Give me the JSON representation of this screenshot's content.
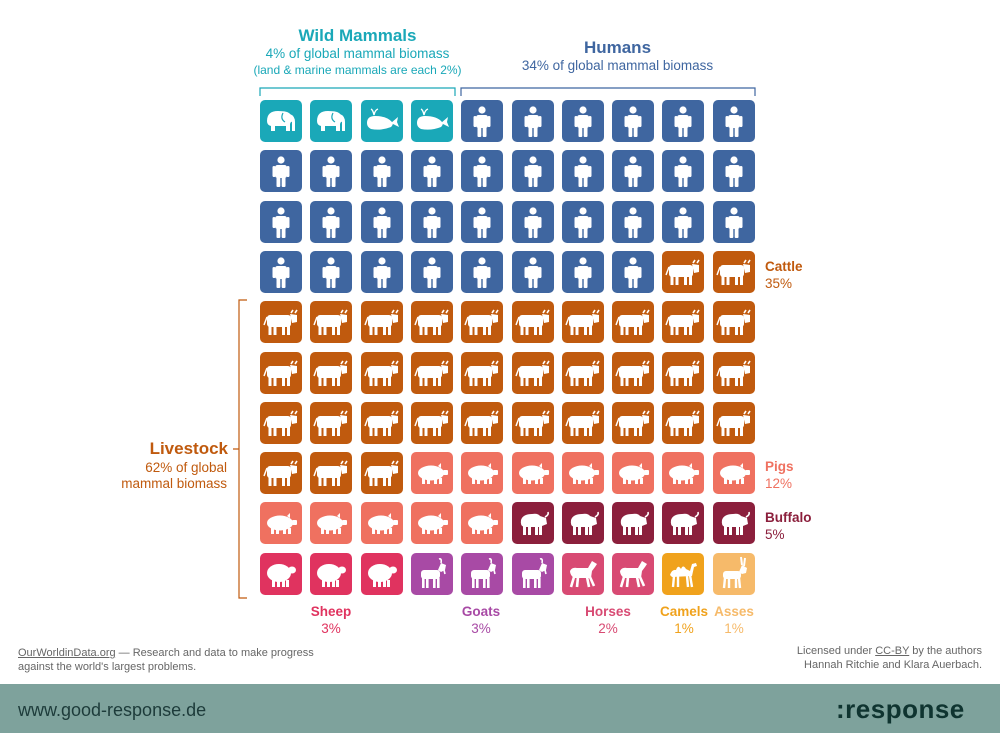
{
  "chart_data": {
    "type": "waffle",
    "title": "",
    "unit_count": 100,
    "grid": {
      "columns": 10,
      "rows": 10
    },
    "series": [
      {
        "name": "Wild Mammals",
        "group": "Wild Mammals",
        "units": 4,
        "color": "#1aa8b8",
        "icons": [
          "elephant",
          "elephant",
          "whale",
          "whale"
        ]
      },
      {
        "name": "Humans",
        "group": "Humans",
        "units": 34,
        "color": "#3f66a0",
        "icon": "human"
      },
      {
        "name": "Cattle",
        "group": "Livestock",
        "units": 35,
        "color": "#c05a0e",
        "icon": "cow"
      },
      {
        "name": "Pigs",
        "group": "Livestock",
        "units": 12,
        "color": "#ef7160",
        "icon": "pig"
      },
      {
        "name": "Buffalo",
        "group": "Livestock",
        "units": 5,
        "color": "#8b1f3c",
        "icon": "buffalo"
      },
      {
        "name": "Sheep",
        "group": "Livestock",
        "units": 3,
        "color": "#e0335f",
        "icon": "sheep"
      },
      {
        "name": "Goats",
        "group": "Livestock",
        "units": 3,
        "color": "#a84aa5",
        "icon": "goat"
      },
      {
        "name": "Horses",
        "group": "Livestock",
        "units": 2,
        "color": "#d84a73",
        "icon": "horse"
      },
      {
        "name": "Camels",
        "group": "Livestock",
        "units": 1,
        "color": "#f0a21c",
        "icon": "camel"
      },
      {
        "name": "Asses",
        "group": "Livestock",
        "units": 1,
        "color": "#f6ba6a",
        "icon": "donkey"
      }
    ]
  },
  "groups": {
    "wild": {
      "title": "Wild Mammals",
      "sub1": "4% of global mammal biomass",
      "sub2": "(land & marine mammals are each 2%)",
      "color": "#1aa8b8"
    },
    "humans": {
      "title": "Humans",
      "sub1": "34% of global mammal biomass",
      "color": "#3f66a0"
    },
    "livestock": {
      "title": "Livestock",
      "sub1": "62% of global",
      "sub2": "mammal biomass",
      "color": "#c05a0e"
    }
  },
  "labels": {
    "cattle": {
      "name": "Cattle",
      "pct": "35%",
      "color": "#c05a0e"
    },
    "pigs": {
      "name": "Pigs",
      "pct": "12%",
      "color": "#ef7160"
    },
    "buffalo": {
      "name": "Buffalo",
      "pct": "5%",
      "color": "#8b1f3c"
    },
    "sheep": {
      "name": "Sheep",
      "pct": "3%",
      "color": "#e0335f"
    },
    "goats": {
      "name": "Goats",
      "pct": "3%",
      "color": "#a84aa5"
    },
    "horses": {
      "name": "Horses",
      "pct": "2%",
      "color": "#d84a73"
    },
    "camels": {
      "name": "Camels",
      "pct": "1%",
      "color": "#f0a21c"
    },
    "asses": {
      "name": "Asses",
      "pct": "1%",
      "color": "#f6ba6a"
    }
  },
  "footer": {
    "source_link": "OurWorldinData.org",
    "source_text": " — Research and data to make progress",
    "source_text2": "against the world's largest problems.",
    "license_pre": "Licensed under ",
    "license_link": "CC-BY",
    "license_post": " by the authors",
    "authors": "Hannah Ritchie and Klara Auerbach.",
    "site_url": "www.good-response.de",
    "brand": ":response"
  }
}
